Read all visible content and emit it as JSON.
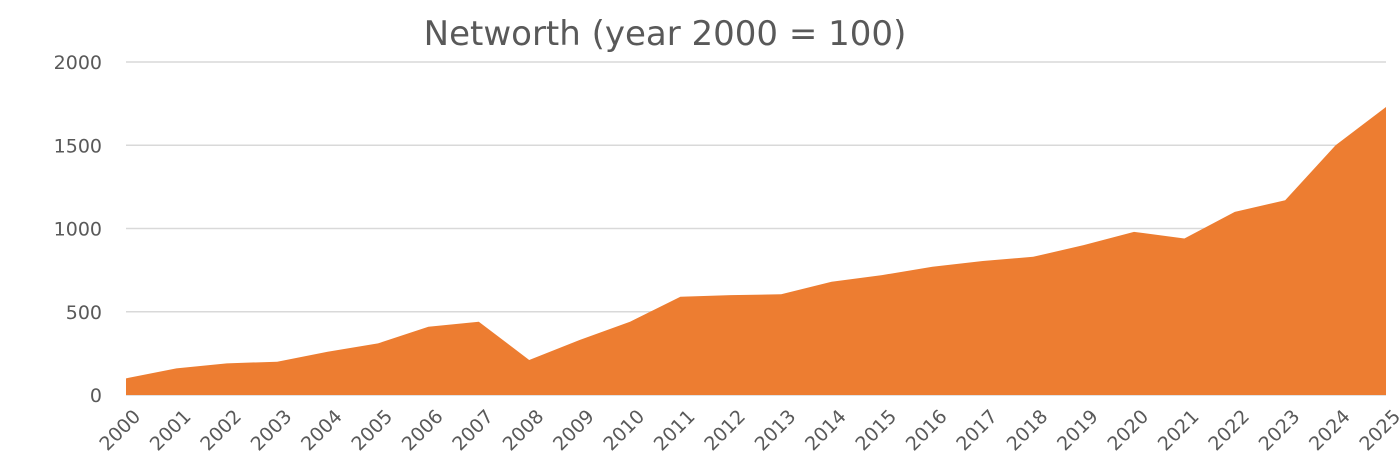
{
  "chart_data": {
    "type": "area",
    "title": "Networth (year 2000 = 100)",
    "xlabel": "",
    "ylabel": "",
    "ylim": [
      0,
      2000
    ],
    "yticks": [
      "0",
      "500",
      "1000",
      "1500",
      "2000"
    ],
    "grid": true,
    "legend": "none",
    "categories": [
      "2000",
      "2001",
      "2002",
      "2003",
      "2004",
      "2005",
      "2006",
      "2007",
      "2008",
      "2009",
      "2010",
      "2011",
      "2012",
      "2013",
      "2014",
      "2015",
      "2016",
      "2017",
      "2018",
      "2019",
      "2020",
      "2021",
      "2022",
      "2023",
      "2024",
      "2025"
    ],
    "values": [
      100,
      160,
      190,
      200,
      260,
      310,
      410,
      440,
      210,
      330,
      440,
      590,
      600,
      605,
      680,
      720,
      770,
      805,
      830,
      900,
      980,
      940,
      1100,
      1170,
      1500,
      1730
    ],
    "color": "#ED7D31",
    "grid_color": "#D9D9D9",
    "text_color": "#595959"
  }
}
